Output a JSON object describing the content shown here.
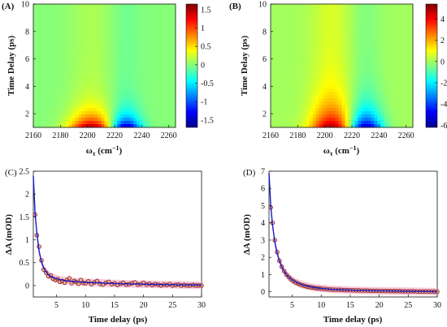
{
  "chart_data": [
    {
      "panel": "(A)",
      "type": "heatmap",
      "xlabel": "ω_τ (cm⁻¹)",
      "ylabel": "Time Delay (ps)",
      "xlim": [
        2160,
        2265
      ],
      "ylim": [
        1,
        10
      ],
      "x_ticks": [
        2160,
        2180,
        2200,
        2220,
        2240,
        2260
      ],
      "y_ticks": [
        2,
        4,
        6,
        8,
        10
      ],
      "colorbar": {
        "range": [
          -1.7,
          1.65
        ],
        "ticks": [
          "1.5",
          "1",
          "0.5",
          "0",
          "-0.5",
          "-1",
          "-1.5"
        ]
      },
      "features": [
        {
          "kind": "positive",
          "center_x": 2203,
          "width": 16,
          "peak": 1.6,
          "decay_ps": 0.9,
          "tail": 0.12
        },
        {
          "kind": "negative",
          "center_x": 2228,
          "width": 11,
          "peak": -1.7,
          "decay_ps": 0.8,
          "tail": -0.08
        }
      ]
    },
    {
      "panel": "(B)",
      "type": "heatmap",
      "xlabel": "ω_τ (cm⁻¹)",
      "ylabel": "Time Delay (ps)",
      "xlim": [
        2160,
        2265
      ],
      "ylim": [
        1,
        10
      ],
      "x_ticks": [
        2160,
        2180,
        2200,
        2220,
        2240,
        2260
      ],
      "y_ticks": [
        2,
        4,
        6,
        8,
        10
      ],
      "colorbar": {
        "range": [
          -6.2,
          5.4
        ],
        "ticks": [
          "4",
          "2",
          "0",
          "-2",
          "-4",
          "-6"
        ]
      },
      "features": [
        {
          "kind": "positive",
          "center_x": 2205,
          "width": 15,
          "peak": 5.2,
          "decay_ps": 1.4,
          "tail": 0.6
        },
        {
          "kind": "negative",
          "center_x": 2230,
          "width": 12,
          "peak": -6.0,
          "decay_ps": 1.1,
          "tail": -0.4
        }
      ]
    },
    {
      "panel": "(C)",
      "type": "scatter",
      "xlabel": "Time delay (ps)",
      "ylabel": "ΔA (mOD)",
      "xlim": [
        1,
        30
      ],
      "ylim": [
        -0.25,
        2.5
      ],
      "x_ticks": [
        5,
        10,
        15,
        20,
        25,
        30
      ],
      "y_ticks": [
        0,
        0.5,
        1,
        1.5,
        2,
        2.5
      ],
      "series": [
        {
          "kind": "points",
          "x": [
            1.3,
            1.6,
            2.0,
            2.4,
            2.8,
            3.2,
            3.6,
            4.0,
            4.4,
            4.8,
            5.2,
            5.6,
            6.0,
            6.4,
            6.8,
            7.2,
            7.6,
            8.0,
            8.4,
            8.8,
            9.2,
            9.6,
            10.0,
            10.5,
            11.0,
            11.5,
            12.0,
            12.5,
            13.0,
            13.5,
            14.0,
            14.5,
            15.0,
            15.5,
            16.0,
            16.5,
            17.0,
            17.5,
            18.0,
            18.5,
            19.0,
            19.5,
            20.0,
            20.5,
            21.0,
            21.5,
            22.0,
            22.5,
            23.0,
            23.5,
            24.0,
            24.5,
            25.0,
            25.5,
            26.0,
            26.5,
            27.0,
            27.5,
            28.0,
            28.5,
            29.0,
            29.5,
            30.0
          ],
          "y": [
            1.55,
            1.1,
            0.85,
            0.55,
            0.35,
            0.28,
            0.2,
            0.22,
            0.15,
            0.12,
            0.14,
            0.08,
            0.1,
            0.06,
            0.12,
            0.16,
            0.05,
            0.1,
            0.08,
            0.04,
            0.12,
            0.06,
            0.05,
            0.09,
            0.03,
            0.07,
            0.1,
            0.04,
            0.02,
            0.06,
            0.08,
            0.03,
            0.05,
            0.01,
            0.04,
            0.06,
            0.02,
            0.03,
            0.05,
            0.07,
            0.02,
            0.03,
            0.06,
            0.02,
            0.04,
            0.01,
            0.03,
            0.02,
            0.0,
            0.02,
            0.01,
            0.03,
            0.0,
            0.01,
            0.02,
            0.0,
            0.01,
            0.0,
            0.0,
            0.01,
            0.0,
            0.0,
            0.0
          ]
        },
        {
          "kind": "fit",
          "x": [
            1.0,
            1.3,
            1.6,
            2.0,
            2.4,
            2.8,
            3.2,
            3.6,
            4.0,
            4.5,
            5.0,
            5.5,
            6.0,
            7.0,
            8.0,
            9.0,
            10.0,
            12.0,
            14.0,
            16.0,
            18.0,
            20.0,
            22.0,
            24.0,
            26.0,
            28.0,
            30.0
          ],
          "y": [
            2.4,
            1.6,
            1.15,
            0.75,
            0.52,
            0.38,
            0.3,
            0.24,
            0.2,
            0.17,
            0.15,
            0.13,
            0.12,
            0.1,
            0.09,
            0.08,
            0.07,
            0.06,
            0.05,
            0.04,
            0.035,
            0.03,
            0.025,
            0.02,
            0.015,
            0.012,
            0.01
          ]
        }
      ]
    },
    {
      "panel": "(D)",
      "type": "scatter",
      "xlabel": "Time delay (ps)",
      "ylabel": "ΔA (mOD)",
      "xlim": [
        1,
        30
      ],
      "ylim": [
        -0.3,
        7
      ],
      "x_ticks": [
        5,
        10,
        15,
        20,
        25,
        30
      ],
      "y_ticks": [
        0,
        1,
        2,
        3,
        4,
        5,
        6,
        7
      ],
      "series": [
        {
          "kind": "points",
          "x": [
            1.3,
            1.6,
            2.0,
            2.4,
            2.8,
            3.2,
            3.6,
            4.0,
            4.4,
            4.8,
            5.2,
            5.6,
            6.0,
            6.4,
            6.8,
            7.2,
            7.6,
            8.0,
            8.4,
            8.8,
            9.2,
            9.6,
            10.0,
            10.5,
            11.0,
            11.5,
            12.0,
            12.5,
            13.0,
            13.5,
            14.0,
            14.5,
            15.0,
            15.5,
            16.0,
            16.5,
            17.0,
            17.5,
            18.0,
            18.5,
            19.0,
            19.5,
            20.0,
            20.5,
            21.0,
            21.5,
            22.0,
            22.5,
            23.0,
            23.5,
            24.0,
            24.5,
            25.0,
            25.5,
            26.0,
            26.5,
            27.0,
            27.5,
            28.0,
            28.5,
            29.0,
            29.5,
            30.0
          ],
          "y": [
            4.9,
            4.0,
            3.0,
            2.3,
            1.8,
            1.45,
            1.2,
            1.0,
            0.85,
            0.72,
            0.62,
            0.55,
            0.48,
            0.42,
            0.38,
            0.34,
            0.3,
            0.28,
            0.25,
            0.23,
            0.21,
            0.2,
            0.18,
            0.17,
            0.15,
            0.14,
            0.13,
            0.12,
            0.12,
            0.11,
            0.1,
            0.1,
            0.09,
            0.09,
            0.08,
            0.08,
            0.07,
            0.07,
            0.07,
            0.06,
            0.06,
            0.06,
            0.05,
            0.05,
            0.05,
            0.05,
            0.04,
            0.04,
            0.04,
            0.04,
            0.03,
            0.03,
            0.03,
            0.03,
            0.03,
            0.02,
            0.02,
            0.02,
            0.02,
            0.02,
            0.02,
            0.01,
            0.01
          ]
        },
        {
          "kind": "fit",
          "x": [
            1.0,
            1.3,
            1.6,
            2.0,
            2.4,
            2.8,
            3.2,
            3.6,
            4.0,
            4.5,
            5.0,
            5.5,
            6.0,
            7.0,
            8.0,
            9.0,
            10.0,
            12.0,
            14.0,
            16.0,
            18.0,
            20.0,
            22.0,
            24.0,
            26.0,
            28.0,
            30.0
          ],
          "y": [
            6.9,
            5.0,
            3.9,
            2.9,
            2.25,
            1.8,
            1.45,
            1.2,
            1.0,
            0.82,
            0.68,
            0.58,
            0.5,
            0.38,
            0.3,
            0.24,
            0.2,
            0.14,
            0.11,
            0.09,
            0.07,
            0.06,
            0.05,
            0.04,
            0.03,
            0.02,
            0.01
          ]
        }
      ]
    }
  ],
  "colors": {
    "points_edge": "#8a1f3a",
    "points_fill": "#f2a14a",
    "fit_line": "#1818c8",
    "band": "#f4b6c6",
    "axis": "#111111",
    "colormap": [
      "#00008f",
      "#0000ff",
      "#0080ff",
      "#00ffff",
      "#80ff80",
      "#ffff00",
      "#ff8000",
      "#ff0000",
      "#800000"
    ]
  }
}
